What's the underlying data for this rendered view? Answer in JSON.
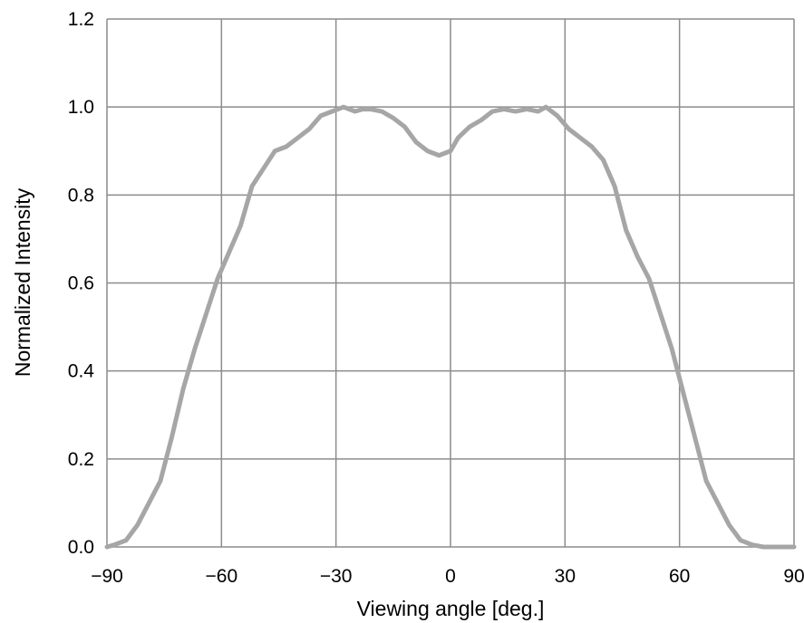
{
  "chart_data": {
    "type": "line",
    "title": "",
    "xlabel": "Viewing angle [deg.]",
    "ylabel": "Normalized Intensity",
    "xlim": [
      -90,
      90
    ],
    "ylim": [
      0.0,
      1.2
    ],
    "xticks": [
      -90,
      -60,
      -30,
      0,
      30,
      60,
      90
    ],
    "xtick_labels": [
      "−90",
      "−60",
      "−30",
      "0",
      "30",
      "60",
      "90"
    ],
    "yticks": [
      0.0,
      0.2,
      0.4,
      0.6,
      0.8,
      1.0,
      1.2
    ],
    "ytick_labels": [
      "0.0",
      "0.2",
      "0.4",
      "0.6",
      "0.8",
      "1.0",
      "1.2"
    ],
    "grid": true,
    "legend": "none",
    "series": [
      {
        "color": "#a6a6a6",
        "x": [
          -90,
          -88,
          -85,
          -82,
          -79,
          -76,
          -73,
          -70,
          -67,
          -64,
          -61,
          -58,
          -55,
          -52,
          -49,
          -46,
          -43,
          -40,
          -37,
          -34,
          -31,
          -28,
          -25,
          -23,
          -21,
          -18,
          -15,
          -12,
          -9,
          -6,
          -3,
          0,
          2,
          5,
          8,
          11,
          14,
          17,
          20,
          23,
          25,
          28,
          31,
          34,
          37,
          40,
          43,
          46,
          49,
          52,
          55,
          58,
          61,
          64,
          67,
          70,
          73,
          76,
          79,
          82,
          85,
          88,
          90
        ],
        "y": [
          0.0,
          0.005,
          0.015,
          0.05,
          0.1,
          0.15,
          0.25,
          0.36,
          0.45,
          0.53,
          0.61,
          0.67,
          0.73,
          0.82,
          0.86,
          0.9,
          0.91,
          0.93,
          0.95,
          0.98,
          0.99,
          1.0,
          0.99,
          0.995,
          0.995,
          0.99,
          0.975,
          0.955,
          0.92,
          0.9,
          0.89,
          0.9,
          0.93,
          0.955,
          0.97,
          0.99,
          0.995,
          0.99,
          0.995,
          0.99,
          1.0,
          0.98,
          0.95,
          0.93,
          0.91,
          0.88,
          0.82,
          0.72,
          0.66,
          0.61,
          0.53,
          0.45,
          0.35,
          0.25,
          0.15,
          0.1,
          0.05,
          0.015,
          0.005,
          0.0,
          0.0,
          0.0,
          0.0
        ]
      }
    ]
  }
}
